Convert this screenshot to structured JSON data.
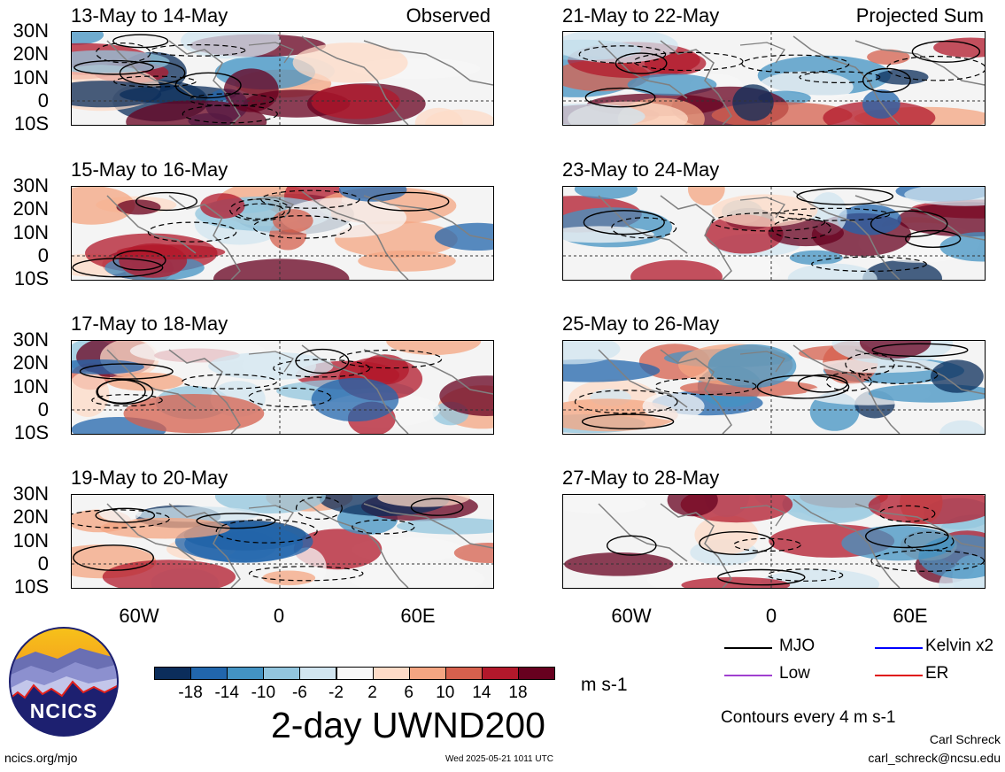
{
  "panels_left": [
    {
      "title": "13-May to 14-May",
      "tag": "Observed"
    },
    {
      "title": "15-May to 16-May",
      "tag": ""
    },
    {
      "title": "17-May to 18-May",
      "tag": ""
    },
    {
      "title": "19-May to 20-May",
      "tag": ""
    }
  ],
  "panels_right": [
    {
      "title": "21-May to 22-May",
      "tag": "Projected Sum"
    },
    {
      "title": "23-May to 24-May",
      "tag": ""
    },
    {
      "title": "25-May to 26-May",
      "tag": ""
    },
    {
      "title": "27-May to 28-May",
      "tag": ""
    }
  ],
  "lat_labels": [
    "30N",
    "20N",
    "10N",
    "0",
    "10S"
  ],
  "lon_labels": [
    "60W",
    "0",
    "60E"
  ],
  "colorbar": {
    "labels": [
      "-18",
      "-14",
      "-10",
      "-6",
      "-2",
      "2",
      "6",
      "10",
      "14",
      "18"
    ],
    "colors": [
      "#0b2d5b",
      "#2166ac",
      "#4393c3",
      "#92c5de",
      "#d1e5f0",
      "#f7f7f7",
      "#fddbc7",
      "#f4a582",
      "#d6604d",
      "#b2182b",
      "#67001f"
    ],
    "units": "m s-1"
  },
  "main_title": "2-day UWND200",
  "legend": {
    "items": [
      {
        "label": "MJO",
        "color": "#000000"
      },
      {
        "label": "Kelvin x2",
        "color": "#0000ff"
      },
      {
        "label": "Low",
        "color": "#a040d0"
      },
      {
        "label": "ER",
        "color": "#e01010"
      }
    ],
    "contours_note": "Contours every 4 m s-1"
  },
  "logo_text": "NCICS",
  "footer": {
    "left": "ncics.org/mjo",
    "center": "Wed 2025-05-21 1011 UTC",
    "author": "Carl Schreck",
    "email": "carl_schreck@ncsu.edu"
  }
}
